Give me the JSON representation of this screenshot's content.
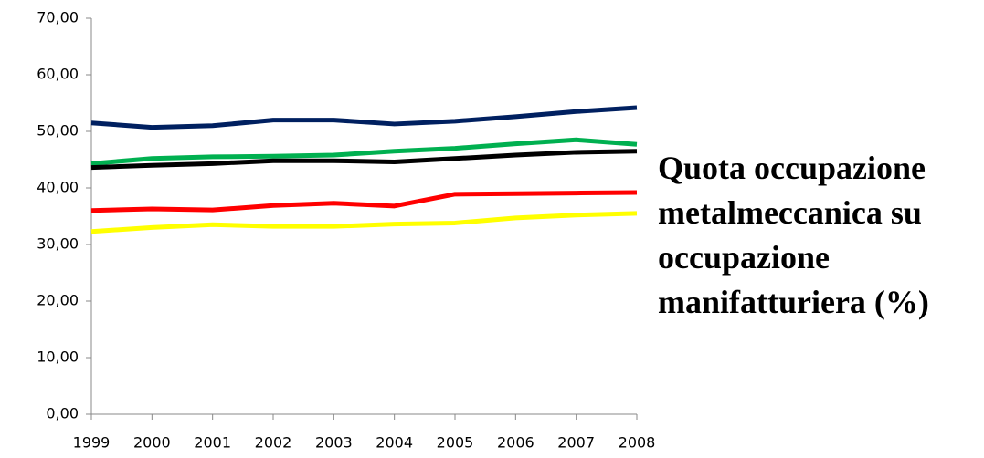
{
  "chart_data": {
    "type": "line",
    "title": "Quota occupazione metalmeccanica su occupazione manifatturiera (%)",
    "categories": [
      "1999",
      "2000",
      "2001",
      "2002",
      "2003",
      "2004",
      "2005",
      "2006",
      "2007",
      "2008"
    ],
    "series": [
      {
        "color": "#002060",
        "values": [
          51.5,
          50.7,
          51.0,
          52.0,
          52.0,
          51.3,
          51.8,
          52.6,
          53.5,
          54.2
        ]
      },
      {
        "color": "#00b050",
        "values": [
          44.3,
          45.2,
          45.5,
          45.6,
          45.8,
          46.5,
          47.0,
          47.8,
          48.5,
          47.7
        ]
      },
      {
        "color": "#000000",
        "values": [
          43.6,
          44.0,
          44.3,
          44.8,
          44.8,
          44.6,
          45.2,
          45.8,
          46.3,
          46.5
        ]
      },
      {
        "color": "#ff0000",
        "values": [
          36.0,
          36.3,
          36.1,
          36.9,
          37.3,
          36.8,
          38.9,
          39.0,
          39.1,
          39.2
        ]
      },
      {
        "color": "#ffff00",
        "values": [
          32.3,
          33.0,
          33.5,
          33.2,
          33.2,
          33.6,
          33.8,
          34.7,
          35.2,
          35.5
        ]
      }
    ],
    "ylim": [
      0,
      70
    ],
    "yticks": [
      {
        "value": 0,
        "label": "0,00"
      },
      {
        "value": 10,
        "label": "10,00"
      },
      {
        "value": 20,
        "label": "20,00"
      },
      {
        "value": 30,
        "label": "30,00"
      },
      {
        "value": 40,
        "label": "40,00"
      },
      {
        "value": 50,
        "label": "50,00"
      },
      {
        "value": 60,
        "label": "60,00"
      },
      {
        "value": 70,
        "label": "70,00"
      }
    ],
    "grid": false
  }
}
